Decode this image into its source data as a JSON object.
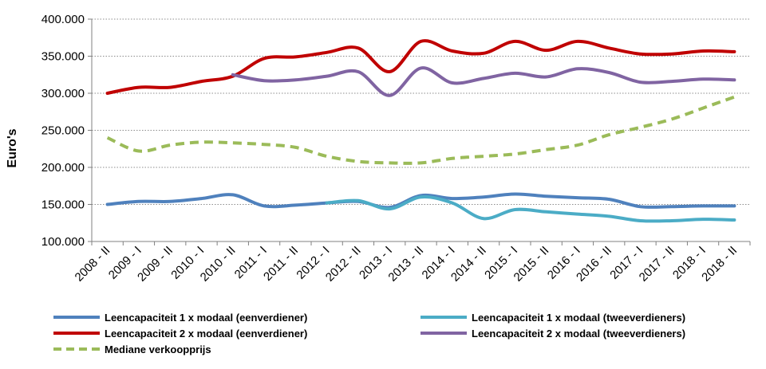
{
  "chart_data": {
    "type": "line",
    "ylabel": "Euro's",
    "ylim": [
      100000,
      400000
    ],
    "yticks": [
      "100.000",
      "150.000",
      "200.000",
      "250.000",
      "300.000",
      "350.000",
      "400.000"
    ],
    "ytick_values": [
      100000,
      150000,
      200000,
      250000,
      300000,
      350000,
      400000
    ],
    "grid": true,
    "legend_position": "bottom",
    "categories": [
      "2008 - II",
      "2009 - I",
      "2009 - II",
      "2010 - I",
      "2010 - II",
      "2011 - I",
      "2011 - II",
      "2012 - I",
      "2012 - II",
      "2013 - I",
      "2013 - II",
      "2014 - I",
      "2014 - II",
      "2015 - I",
      "2015 - II",
      "2016 - I",
      "2016 - II",
      "2017 - I",
      "2017 - II",
      "2018 - I",
      "2018 - II"
    ],
    "series": [
      {
        "name": "Leencapaciteit 1 x modaal (eenverdiener)",
        "color": "#4f81bd",
        "dash": false,
        "values": [
          150000,
          154000,
          154000,
          158000,
          163000,
          148000,
          149000,
          152000,
          154000,
          146000,
          162000,
          158000,
          160000,
          164000,
          161000,
          159000,
          157000,
          147000,
          147000,
          148000,
          148000
        ]
      },
      {
        "name": "Leencapaciteit 1 x modaal (tweeverdieners)",
        "color": "#4bacc6",
        "dash": false,
        "start_index": 7,
        "values": [
          null,
          null,
          null,
          null,
          null,
          null,
          null,
          152000,
          155000,
          144000,
          160000,
          152000,
          131000,
          143000,
          140000,
          137000,
          134000,
          128000,
          128000,
          130000,
          129000
        ]
      },
      {
        "name": "Leencapaciteit 2 x modaal (eenverdiener)",
        "color": "#c00000",
        "dash": false,
        "values": [
          300000,
          308000,
          308000,
          316000,
          323000,
          347000,
          349000,
          355000,
          361000,
          329000,
          370000,
          357000,
          354000,
          370000,
          358000,
          370000,
          361000,
          353000,
          353000,
          357000,
          356000
        ]
      },
      {
        "name": "Leencapaciteit 2 x modaal (tweeverdieners)",
        "color": "#8064a2",
        "dash": false,
        "values": [
          null,
          null,
          null,
          null,
          325000,
          317000,
          318000,
          323000,
          329000,
          297000,
          334000,
          314000,
          320000,
          327000,
          322000,
          333000,
          328000,
          315000,
          316000,
          319000,
          318000
        ]
      },
      {
        "name": "Mediane verkoopprijs",
        "color": "#9bbb59",
        "dash": true,
        "values": [
          240000,
          222000,
          230000,
          234000,
          233000,
          231000,
          227000,
          215000,
          208000,
          206000,
          206000,
          212000,
          215000,
          218000,
          224000,
          230000,
          244000,
          254000,
          265000,
          280000,
          295000
        ]
      }
    ]
  }
}
